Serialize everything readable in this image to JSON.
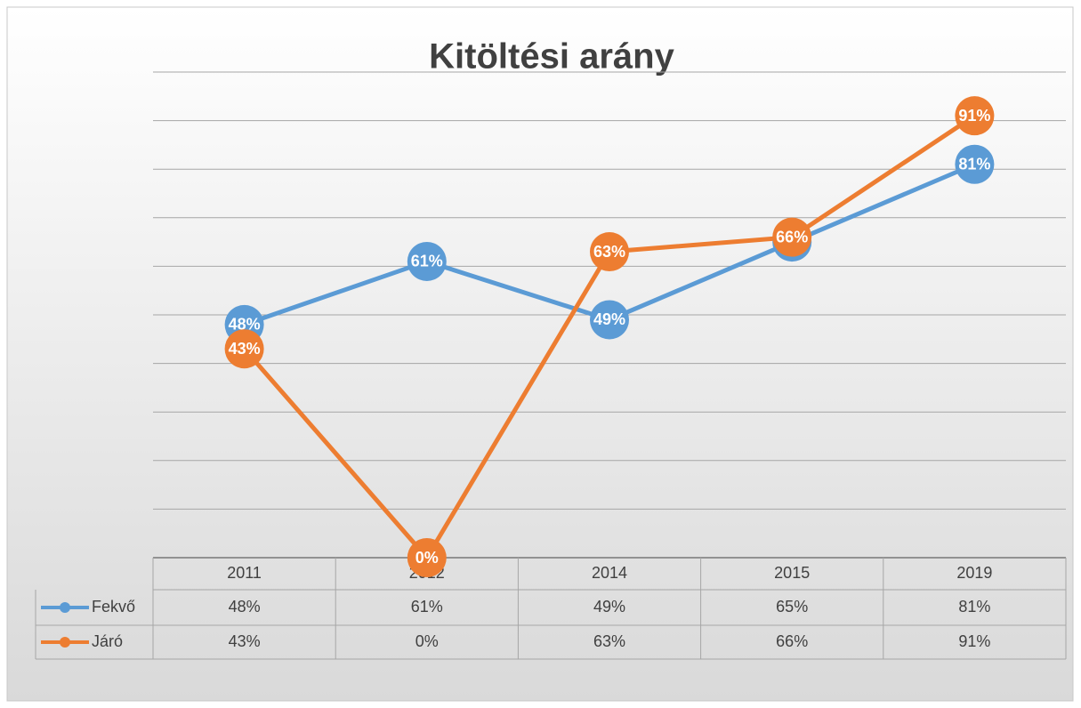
{
  "chart_data": {
    "type": "line",
    "title": "Kitöltési arány",
    "categories": [
      "2011",
      "2012",
      "2014",
      "2015",
      "2019"
    ],
    "series": [
      {
        "name": "Fekvő",
        "color": "#5b9bd5",
        "values": [
          48,
          61,
          49,
          65,
          81
        ],
        "value_labels": [
          "48%",
          "61%",
          "49%",
          "65%",
          "81%"
        ]
      },
      {
        "name": "Járó",
        "color": "#ed7d31",
        "values": [
          43,
          0,
          63,
          66,
          91
        ],
        "value_labels": [
          "43%",
          "0%",
          "63%",
          "66%",
          "91%"
        ]
      }
    ],
    "ylim": [
      0,
      100
    ],
    "yticks": [
      0,
      10,
      20,
      30,
      40,
      50,
      60,
      70,
      80,
      90,
      100
    ],
    "grid": true,
    "legend": "table"
  }
}
